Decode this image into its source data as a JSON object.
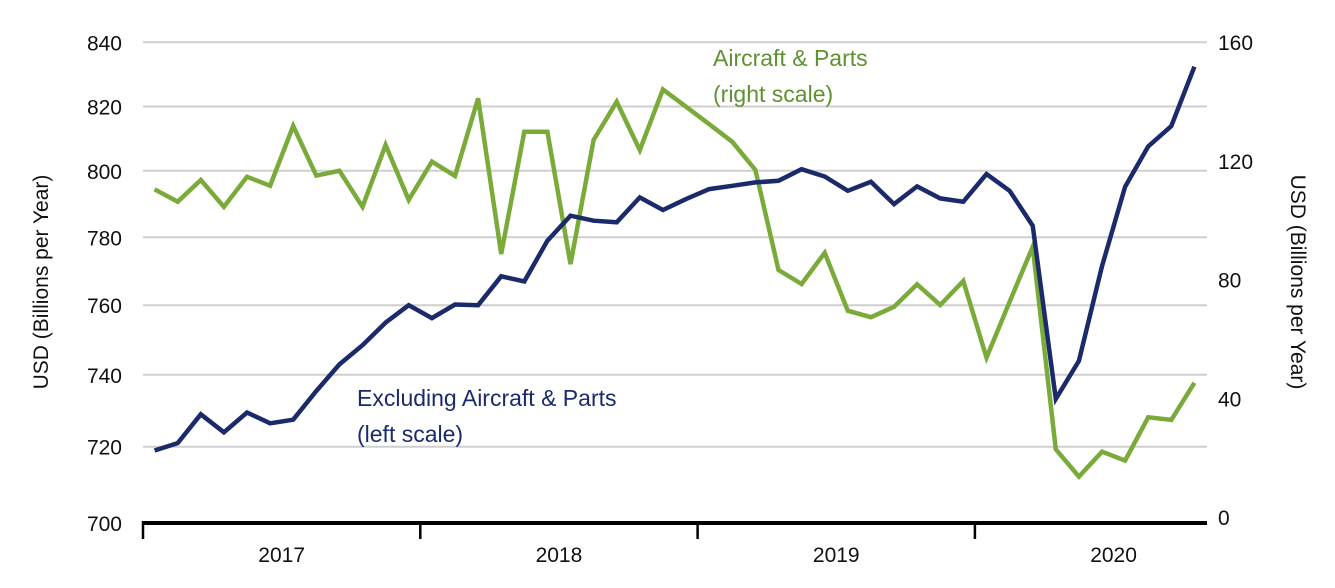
{
  "chart_data": {
    "type": "line",
    "title": "",
    "xlabel": "",
    "ylabel_left": "USD (Billions per Year)",
    "ylabel_right": "USD (Billions per Year)",
    "ylim_left": [
      700,
      840
    ],
    "ylim_right": [
      0,
      160
    ],
    "yticks_left": [
      700,
      720,
      740,
      760,
      780,
      800,
      820,
      840
    ],
    "yticks_right": [
      0,
      40,
      80,
      120,
      160
    ],
    "grid": true,
    "x_categories": [
      "2017",
      "2018",
      "2019",
      "2020"
    ],
    "x": [
      "2017-01",
      "2017-02",
      "2017-03",
      "2017-04",
      "2017-05",
      "2017-06",
      "2017-07",
      "2017-08",
      "2017-09",
      "2017-10",
      "2017-11",
      "2017-12",
      "2018-01",
      "2018-02",
      "2018-03",
      "2018-04",
      "2018-05",
      "2018-06",
      "2018-07",
      "2018-08",
      "2018-09",
      "2018-10",
      "2018-11",
      "2018-12",
      "2019-01",
      "2019-02",
      "2019-03",
      "2019-04",
      "2019-05",
      "2019-06",
      "2019-07",
      "2019-08",
      "2019-09",
      "2019-10",
      "2019-11",
      "2019-12",
      "2020-01",
      "2020-02",
      "2020-03",
      "2020-04",
      "2020-05",
      "2020-06",
      "2020-07",
      "2020-08",
      "2020-09",
      "2020-10"
    ],
    "series": [
      {
        "name": "Excluding Aircraft & Parts",
        "label_line1": "Excluding Aircraft & Parts",
        "label_line2": "(left scale)",
        "axis": "left",
        "color": "#1b2a6b",
        "values": [
          719,
          721,
          729,
          724,
          729.5,
          726.5,
          727.5,
          735.5,
          743,
          748.5,
          755,
          760,
          756.3,
          760.2,
          760,
          768.5,
          767,
          779,
          786.5,
          785,
          784.5,
          792,
          788.2,
          791.5,
          794.5,
          795.5,
          796.5,
          797,
          800.5,
          798.3,
          794,
          796.7,
          790,
          795.3,
          791.7,
          790.7,
          799,
          794,
          783.5,
          733.3,
          744,
          771.5,
          795.2,
          807.6,
          813.9,
          832.4
        ]
      },
      {
        "name": "Aircraft & Parts",
        "label_line1": "Aircraft & Parts",
        "label_line2": "(right scale)",
        "axis": "right",
        "color": "#7aab3a",
        "label_color": "#5e9130",
        "values": [
          110.4,
          106.2,
          113.5,
          104.5,
          114.6,
          111.6,
          131.7,
          115,
          116.6,
          104.5,
          125.3,
          106.8,
          119.7,
          114.9,
          141,
          88.6,
          129.8,
          129.8,
          85.2,
          127,
          139.9,
          123.6,
          144,
          138.2,
          132.3,
          126.4,
          116.9,
          83.2,
          78.5,
          89,
          69.5,
          67.3,
          70.8,
          78.4,
          71.4,
          79.5,
          53.7,
          72.5,
          91,
          22.8,
          13.6,
          22,
          19,
          33.6,
          32.7,
          45.2
        ]
      }
    ]
  }
}
